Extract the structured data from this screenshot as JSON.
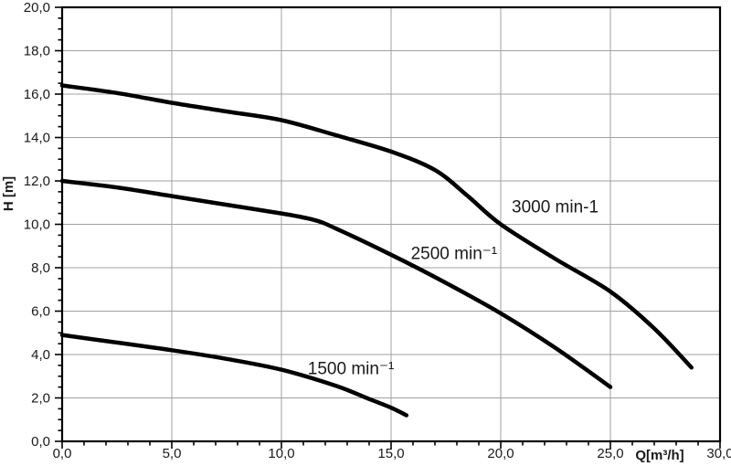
{
  "chart_data": {
    "type": "line",
    "title": "",
    "xlabel": "Q[m³/h]",
    "ylabel": "H [m]",
    "xlim": [
      0,
      30
    ],
    "ylim": [
      0,
      20
    ],
    "grid": true,
    "legend_position": "labels-on-curves",
    "x_major_ticks": [
      0,
      5,
      10,
      15,
      20,
      25,
      30
    ],
    "x_tick_labels": [
      "0,0",
      "5,0",
      "10,0",
      "15,0",
      "20,0",
      "25,0",
      "30,0"
    ],
    "x_minor_step": 1,
    "y_major_ticks": [
      0,
      2,
      4,
      6,
      8,
      10,
      12,
      14,
      16,
      18,
      20
    ],
    "y_tick_labels": [
      "0,0",
      "2,0",
      "4,0",
      "6,0",
      "8,0",
      "10,0",
      "12,0",
      "14,0",
      "16,0",
      "18,0",
      "20,0"
    ],
    "y_minor_step": 0.5,
    "series": [
      {
        "name": "3000-rpm",
        "label": "3000 min-1",
        "label_pos": {
          "x": 20.5,
          "y": 10.55
        },
        "points": [
          [
            0,
            16.4
          ],
          [
            2.5,
            16.05
          ],
          [
            5,
            15.6
          ],
          [
            7.5,
            15.2
          ],
          [
            10,
            14.8
          ],
          [
            12.5,
            14.1
          ],
          [
            15,
            13.35
          ],
          [
            17,
            12.5
          ],
          [
            18.5,
            11.3
          ],
          [
            20,
            10.0
          ],
          [
            22.5,
            8.4
          ],
          [
            25,
            6.9
          ],
          [
            27,
            5.2
          ],
          [
            28.7,
            3.4
          ]
        ]
      },
      {
        "name": "2500-rpm",
        "label": "2500 min⁻¹",
        "label_pos": {
          "x": 15.9,
          "y": 8.4
        },
        "points": [
          [
            0,
            12.0
          ],
          [
            2.5,
            11.7
          ],
          [
            5,
            11.3
          ],
          [
            7.5,
            10.9
          ],
          [
            10,
            10.5
          ],
          [
            11.5,
            10.2
          ],
          [
            12.5,
            9.8
          ],
          [
            15,
            8.6
          ],
          [
            17.5,
            7.3
          ],
          [
            20,
            5.9
          ],
          [
            22.5,
            4.3
          ],
          [
            25,
            2.5
          ]
        ]
      },
      {
        "name": "1500-rpm",
        "label": "1500 min⁻¹",
        "label_pos": {
          "x": 11.2,
          "y": 3.1
        },
        "points": [
          [
            0,
            4.9
          ],
          [
            2.5,
            4.55
          ],
          [
            5,
            4.2
          ],
          [
            7.5,
            3.8
          ],
          [
            10,
            3.3
          ],
          [
            12.5,
            2.55
          ],
          [
            14,
            1.95
          ],
          [
            15,
            1.55
          ],
          [
            15.7,
            1.2
          ]
        ]
      }
    ],
    "colors": {
      "curve": "#000000",
      "grid": "#a0a0a0",
      "axis": "#000000",
      "text": "#1a1a1a",
      "background": "#ffffff"
    }
  },
  "layout_values": {
    "curve_stroke_width": 4.5,
    "tick_label_font_size": 15,
    "curve_label_font_size": 19,
    "axis_title_font_size": 15
  }
}
